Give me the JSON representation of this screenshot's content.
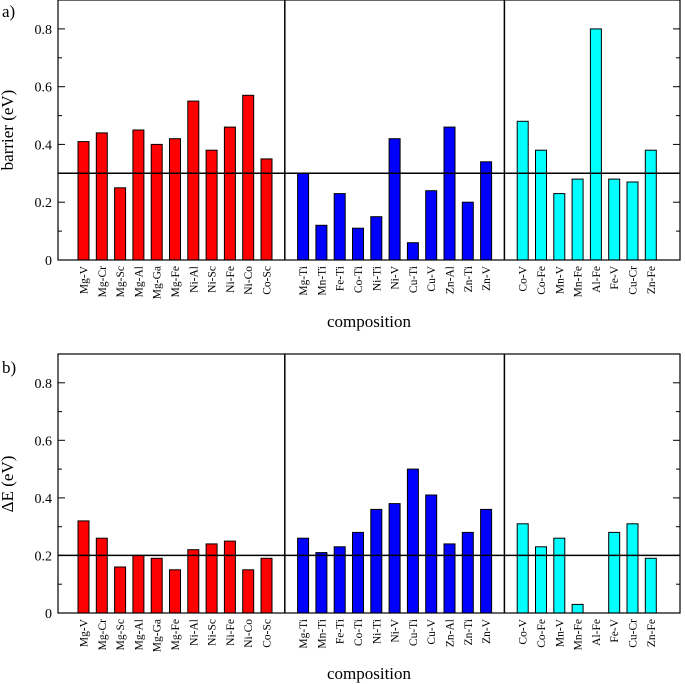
{
  "chart_data": [
    {
      "type": "bar",
      "panel_label": "a)",
      "xlabel": "composition",
      "ylabel": "barrier (eV)",
      "ylim": [
        0,
        0.9
      ],
      "yticks": [
        0,
        0.2,
        0.4,
        0.6,
        0.8
      ],
      "ytick_labels": [
        "0",
        "0.2",
        "0.4",
        "0.6",
        "0.8"
      ],
      "reference_line": 0.3,
      "groups": [
        {
          "color": "#ff0000",
          "categories": [
            "Mg-V",
            "Mg-Cr",
            "Mg-Sc",
            "Mg-Al",
            "Mg-Ga",
            "Mg-Fe",
            "Ni-Al",
            "Ni-Sc",
            "Ni-Fe",
            "Ni-Co",
            "Co-Sc"
          ],
          "values": [
            0.41,
            0.44,
            0.25,
            0.45,
            0.4,
            0.42,
            0.55,
            0.38,
            0.46,
            0.57,
            0.35
          ]
        },
        {
          "color": "#0000ff",
          "categories": [
            "Mg-Ti",
            "Mn-Ti",
            "Fe-Ti",
            "Co-Ti",
            "Ni-Ti",
            "Ni-V",
            "Cu-Ti",
            "Cu-V",
            "Zn-Al",
            "Zn-Ti",
            "Zn-V"
          ],
          "values": [
            0.3,
            0.12,
            0.23,
            0.11,
            0.15,
            0.42,
            0.06,
            0.24,
            0.46,
            0.2,
            0.34
          ]
        },
        {
          "color": "#00ffff",
          "categories": [
            "Co-V",
            "Co-Fe",
            "Mn-V",
            "Mn-Fe",
            "Al-Fe",
            "Fe-V",
            "Cu-Cr",
            "Zn-Fe"
          ],
          "values": [
            0.48,
            0.38,
            0.23,
            0.28,
            0.8,
            0.28,
            0.27,
            0.38
          ]
        }
      ]
    },
    {
      "type": "bar",
      "panel_label": "b)",
      "xlabel": "composition",
      "ylabel": "ΔE (eV)",
      "ylim": [
        0,
        0.9
      ],
      "yticks": [
        0,
        0.2,
        0.4,
        0.6,
        0.8
      ],
      "ytick_labels": [
        "0",
        "0.2",
        "0.4",
        "0.6",
        "0.8"
      ],
      "reference_line": 0.2,
      "groups": [
        {
          "color": "#ff0000",
          "categories": [
            "Mg-V",
            "Mg-Cr",
            "Mg-Sc",
            "Mg-Al",
            "Mg-Ga",
            "Mg-Fe",
            "Ni-Al",
            "Ni-Sc",
            "Ni-Fe",
            "Ni-Co",
            "Co-Sc"
          ],
          "values": [
            0.32,
            0.26,
            0.16,
            0.2,
            0.19,
            0.15,
            0.22,
            0.24,
            0.25,
            0.15,
            0.19
          ]
        },
        {
          "color": "#0000ff",
          "categories": [
            "Mg-Ti",
            "Mn-Ti",
            "Fe-Ti",
            "Co-Ti",
            "Ni-Ti",
            "Ni-V",
            "Cu-Ti",
            "Cu-V",
            "Zn-Al",
            "Zn-Ti",
            "Zn-V"
          ],
          "values": [
            0.26,
            0.21,
            0.23,
            0.28,
            0.36,
            0.38,
            0.5,
            0.41,
            0.24,
            0.28,
            0.36
          ]
        },
        {
          "color": "#00ffff",
          "categories": [
            "Co-V",
            "Co-Fe",
            "Mn-V",
            "Mn-Fe",
            "Al-Fe",
            "Fe-V",
            "Cu-Cr",
            "Zn-Fe"
          ],
          "values": [
            0.31,
            0.23,
            0.26,
            0.03,
            0.0,
            0.28,
            0.31,
            0.19
          ]
        }
      ]
    }
  ]
}
